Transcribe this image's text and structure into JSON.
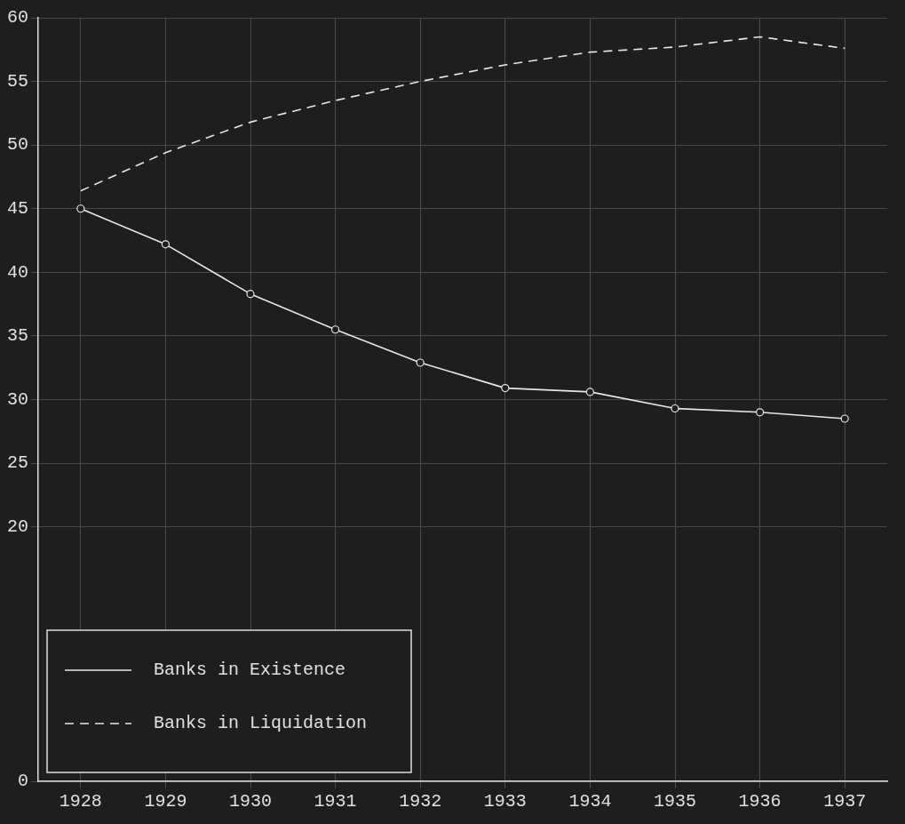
{
  "chart_data": {
    "type": "line",
    "categories": [
      "1928",
      "1929",
      "1930",
      "1931",
      "1932",
      "1933",
      "1934",
      "1935",
      "1936",
      "1937"
    ],
    "series": [
      {
        "name": "Banks in Existence",
        "color": "#e8e8e8",
        "line_style": "solid",
        "marker": "circle",
        "values": [
          45,
          42.2,
          38.3,
          35.5,
          32.9,
          30.9,
          30.6,
          29.3,
          29.0,
          28.5
        ]
      },
      {
        "name": "Banks in Liquidation",
        "color": "#e8e8e8",
        "line_style": "dashed",
        "marker": "none",
        "values": [
          46.4,
          49.4,
          51.8,
          53.5,
          55.0,
          56.3,
          57.3,
          57.7,
          58.5,
          57.6
        ]
      }
    ],
    "ylim": [
      0,
      60
    ],
    "yticks": [
      0,
      20,
      25,
      30,
      35,
      40,
      45,
      50,
      55,
      60
    ],
    "grid": true,
    "legend": "bottom left"
  }
}
